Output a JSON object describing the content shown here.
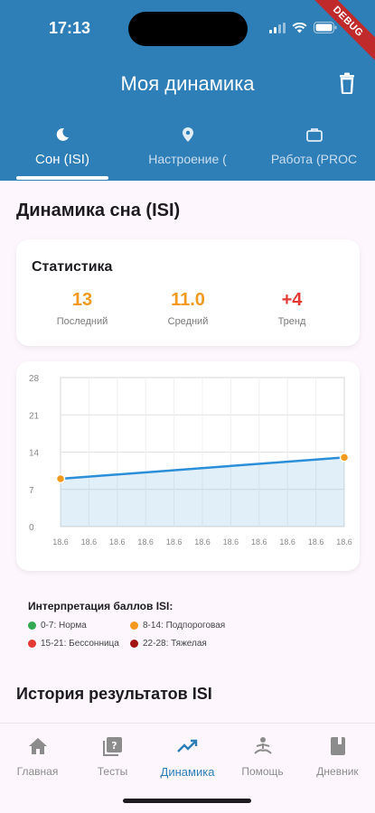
{
  "status_bar": {
    "time": "17:13",
    "debug_label": "DEBUG"
  },
  "header": {
    "title": "Моя динамика"
  },
  "tabs": [
    {
      "label": "Сон (ISI)",
      "icon": "moon-icon",
      "active": true
    },
    {
      "label": "Настроение (",
      "icon": "location-pin-icon",
      "active": false
    },
    {
      "label": "Работа (PROC",
      "icon": "briefcase-icon",
      "active": false
    }
  ],
  "section": {
    "title": "Динамика сна (ISI)",
    "history_title": "История результатов ISI"
  },
  "stats": {
    "title": "Статистика",
    "items": [
      {
        "value": "13",
        "label": "Последний",
        "color": "#f39a1e"
      },
      {
        "value": "11.0",
        "label": "Средний",
        "color": "#f39a1e"
      },
      {
        "value": "+4",
        "label": "Тренд",
        "color": "#e53935"
      }
    ]
  },
  "chart_data": {
    "type": "line",
    "y_ticks": [
      "28",
      "21",
      "14",
      "7",
      "0"
    ],
    "ylim": [
      0,
      28
    ],
    "x_ticks": [
      "18.6",
      "18.6",
      "18.6",
      "18.6",
      "18.6",
      "18.6",
      "18.6",
      "18.6",
      "18.6",
      "18.6",
      "18.6"
    ],
    "series": [
      {
        "values": [
          9,
          13
        ],
        "color": "#2a8fd8"
      }
    ],
    "grid": true,
    "area_fill": true
  },
  "legend": {
    "title": "Интерпретация баллов ISI:",
    "items": [
      {
        "label": "0-7: Норма",
        "color": "#34a853"
      },
      {
        "label": "8-14: Подпороговая",
        "color": "#f39a1e"
      },
      {
        "label": "15-21: Бессонница",
        "color": "#e53935"
      },
      {
        "label": "22-28: Тяжелая",
        "color": "#a31515"
      }
    ]
  },
  "nav": [
    {
      "label": "Главная",
      "icon": "home-icon",
      "active": false
    },
    {
      "label": "Тесты",
      "icon": "quiz-icon",
      "active": false
    },
    {
      "label": "Динамика",
      "icon": "trending-up-icon",
      "active": true
    },
    {
      "label": "Помощь",
      "icon": "meditation-icon",
      "active": false
    },
    {
      "label": "Дневник",
      "icon": "book-icon",
      "active": false
    }
  ]
}
